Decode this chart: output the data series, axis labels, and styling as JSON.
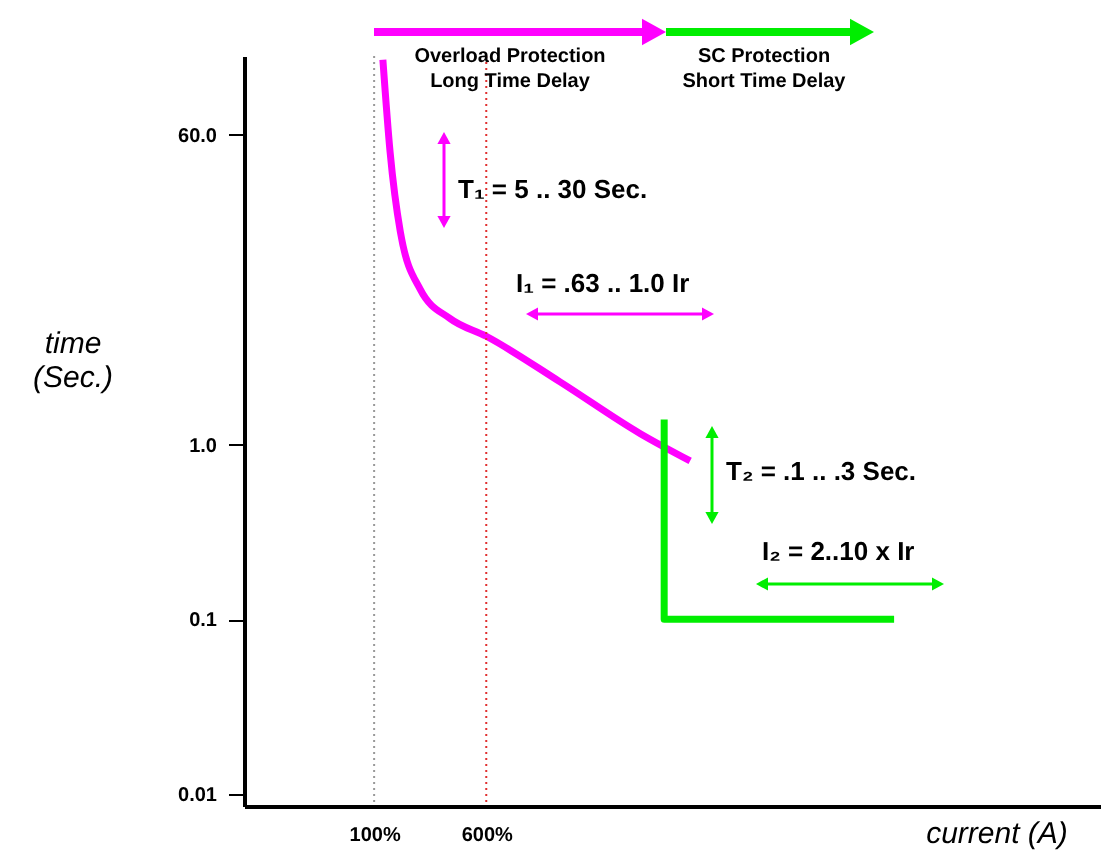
{
  "chart_data": {
    "type": "line",
    "xlabel": "current (A)",
    "ylabel": "time (Sec.)",
    "log": "xy",
    "xlim": [
      12.5,
      10900000
    ],
    "ylim": [
      0.0085,
      170
    ],
    "xticks": [
      {
        "value": 100,
        "label": "100%"
      },
      {
        "value": 600,
        "label": "600%"
      }
    ],
    "yticks": [
      0.01,
      0.1,
      {
        "value": 1,
        "label": "1.0"
      },
      {
        "value": 60,
        "label": "60.0"
      }
    ],
    "series": [
      {
        "color": "#ff00ff",
        "x": [
          115,
          129,
          152,
          209,
          337,
          600,
          1950,
          7040,
          15600
        ],
        "values": [
          162,
          48,
          16.7,
          7.8,
          5.3,
          4.2,
          2.3,
          1.16,
          0.81
        ]
      },
      {
        "color": "#00ee00",
        "x": [
          10300,
          10300,
          406000
        ],
        "values": [
          1.4,
          0.1,
          0.1
        ]
      }
    ],
    "ref_lines": [
      {
        "axis": "x",
        "value": 100,
        "color": "#999999",
        "line_style": "dotted"
      },
      {
        "axis": "x",
        "value": 600,
        "color": "#e03030",
        "line_style": "dotted"
      }
    ],
    "annotations": [
      "Overload Protection\nLong Time Delay",
      "SC Protection\nShort Time Delay",
      "T₁ = 5 .. 30  Sec.",
      "I₁ = .63 .. 1.0 Ir",
      "T₂ = .1 .. .3 Sec.",
      "I₂ = 2..10 x Ir"
    ]
  }
}
